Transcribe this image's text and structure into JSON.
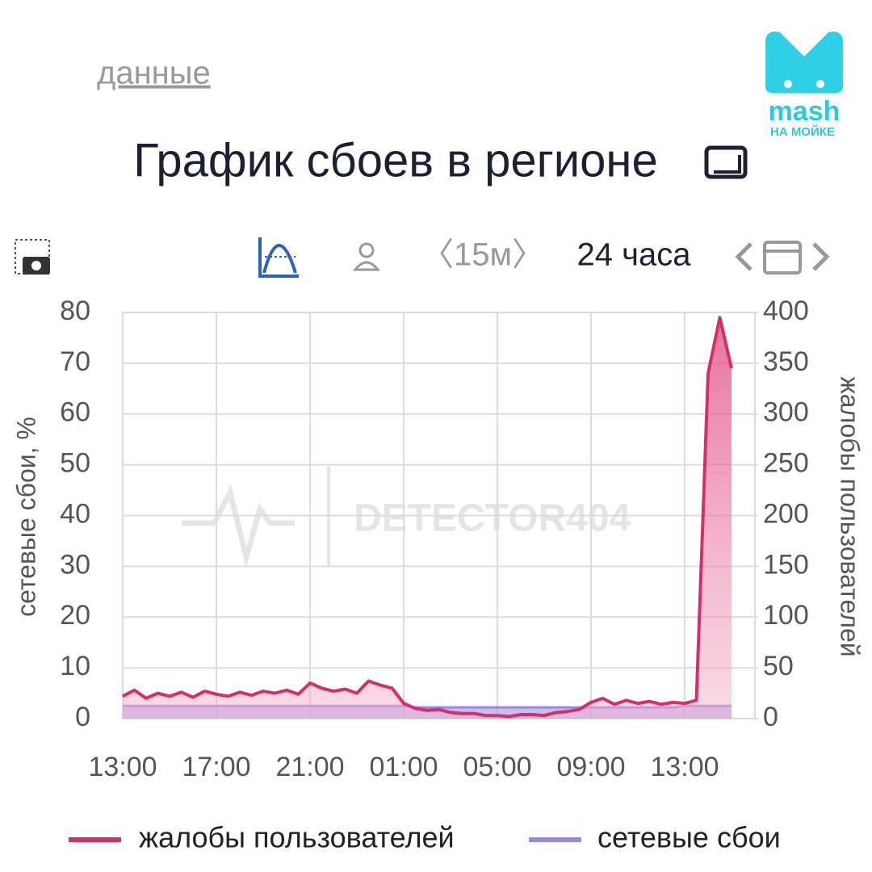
{
  "ui": {
    "link": "данные",
    "interval": "〈15м〉",
    "range": "24 часа",
    "watermark": "DETECTOR404",
    "logo": "mash",
    "logo_sub": "НА МОЙКЕ"
  },
  "chart_data": {
    "type": "line",
    "title": "График сбоев в регионе",
    "categories": [
      "13:00",
      null,
      null,
      null,
      null,
      null,
      null,
      null,
      "17:00",
      null,
      null,
      null,
      null,
      null,
      null,
      null,
      "21:00",
      null,
      null,
      null,
      null,
      null,
      null,
      null,
      "01:00",
      null,
      null,
      null,
      null,
      null,
      null,
      null,
      "05:00",
      null,
      null,
      null,
      null,
      null,
      null,
      null,
      "09:00",
      null,
      null,
      null,
      null,
      null,
      null,
      null,
      "13:00",
      null,
      null,
      null,
      null
    ],
    "series": [
      {
        "name": "жалобы пользователей",
        "color": "#d2306a",
        "axis": "y2",
        "values": [
          22,
          28,
          20,
          25,
          22,
          26,
          21,
          27,
          24,
          22,
          26,
          23,
          27,
          25,
          28,
          24,
          35,
          30,
          27,
          29,
          25,
          37,
          33,
          30,
          15,
          10,
          8,
          9,
          6,
          5,
          5,
          3,
          3,
          2,
          4,
          4,
          3,
          6,
          7,
          9,
          16,
          20,
          14,
          18,
          15,
          17,
          14,
          16,
          15,
          18,
          340,
          395,
          345
        ]
      },
      {
        "name": "сетевые сбои",
        "color": "#9d86e6",
        "axis": "y",
        "values": [
          2.5,
          2.5,
          2.5,
          2.5,
          2.5,
          2.5,
          2.5,
          2.5,
          2.5,
          2.5,
          2.5,
          2.5,
          2.5,
          2.5,
          2.5,
          2.5,
          2.5,
          2.5,
          2.5,
          2.5,
          2.5,
          2.5,
          2.5,
          2.5,
          2.5,
          2.2,
          2.2,
          2.2,
          2.2,
          2.2,
          2.2,
          2.2,
          2.2,
          2.2,
          2.2,
          2.2,
          2.2,
          2.2,
          2.2,
          2.2,
          2.2,
          2.2,
          2.2,
          2.2,
          2.2,
          2.2,
          2.2,
          2.2,
          2.5,
          2.5,
          2.5,
          2.5,
          2.5
        ]
      }
    ],
    "y_label": "сетевые сбои, %",
    "y2_label": "жалобы пользователей",
    "ylim": [
      0,
      80
    ],
    "yticks": [
      0,
      10,
      20,
      30,
      40,
      50,
      60,
      70,
      80
    ],
    "y2lim": [
      0,
      400
    ],
    "y2ticks": [
      0,
      50,
      100,
      150,
      200,
      250,
      300,
      350,
      400
    ],
    "grid": true,
    "legend": "bottom"
  }
}
